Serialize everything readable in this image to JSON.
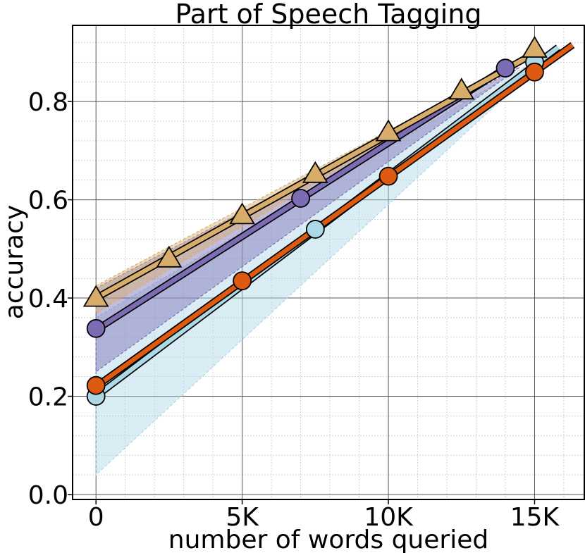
{
  "chart_data": {
    "type": "line",
    "title": "Part of Speech Tagging",
    "xlabel": "number of words queried",
    "ylabel": "accuracy",
    "xlim": [
      -800,
      16700
    ],
    "ylim": [
      -0.01,
      0.955
    ],
    "xticks": [
      {
        "value": 0,
        "label": "0"
      },
      {
        "value": 5000,
        "label": "5K"
      },
      {
        "value": 10000,
        "label": "10K"
      },
      {
        "value": 15000,
        "label": "15K"
      }
    ],
    "yticks": [
      {
        "value": 0.0,
        "label": "0.0"
      },
      {
        "value": 0.2,
        "label": "0.2"
      },
      {
        "value": 0.4,
        "label": "0.4"
      },
      {
        "value": 0.6,
        "label": "0.6"
      },
      {
        "value": 0.8,
        "label": "0.8"
      }
    ],
    "grid": true,
    "series": [
      {
        "color": "#add8e6",
        "marker": "circle",
        "band_lower": [
          [
            0,
            0.04
          ],
          [
            15800,
            0.91
          ]
        ],
        "band_upper": [
          [
            0,
            0.36
          ],
          [
            15800,
            0.91
          ]
        ],
        "line": [
          [
            0,
            0.2
          ],
          [
            15800,
            0.91
          ]
        ],
        "points": [
          [
            0,
            0.2
          ],
          [
            7500,
            0.54
          ],
          [
            15000,
            0.88
          ]
        ]
      },
      {
        "color": "#7b6cb4",
        "marker": "circle",
        "band_lower": [
          [
            0,
            0.25
          ],
          [
            14500,
            0.87
          ]
        ],
        "band_upper": [
          [
            0,
            0.42
          ],
          [
            14500,
            0.87
          ]
        ],
        "line": [
          [
            0,
            0.335
          ],
          [
            14000,
            0.868
          ]
        ],
        "points": [
          [
            0,
            0.338
          ],
          [
            7000,
            0.603
          ],
          [
            14000,
            0.868
          ]
        ]
      },
      {
        "color": "#d8ad6a",
        "marker": "triangle",
        "band_lower": [
          [
            0,
            0.37
          ],
          [
            15200,
            0.905
          ]
        ],
        "band_upper": [
          [
            0,
            0.425
          ],
          [
            15200,
            0.905
          ]
        ],
        "line": [
          [
            0,
            0.4
          ],
          [
            15200,
            0.905
          ]
        ],
        "points": [
          [
            0,
            0.4
          ],
          [
            2500,
            0.48
          ],
          [
            5000,
            0.568
          ],
          [
            7500,
            0.652
          ],
          [
            10000,
            0.737
          ],
          [
            12500,
            0.822
          ],
          [
            15000,
            0.907
          ]
        ]
      },
      {
        "color": "#dd5a10",
        "marker": "circle",
        "line": [
          [
            0,
            0.22
          ],
          [
            16300,
            0.915
          ]
        ],
        "points": [
          [
            0,
            0.222
          ],
          [
            5000,
            0.435
          ],
          [
            10000,
            0.648
          ],
          [
            15000,
            0.86
          ]
        ]
      }
    ]
  }
}
